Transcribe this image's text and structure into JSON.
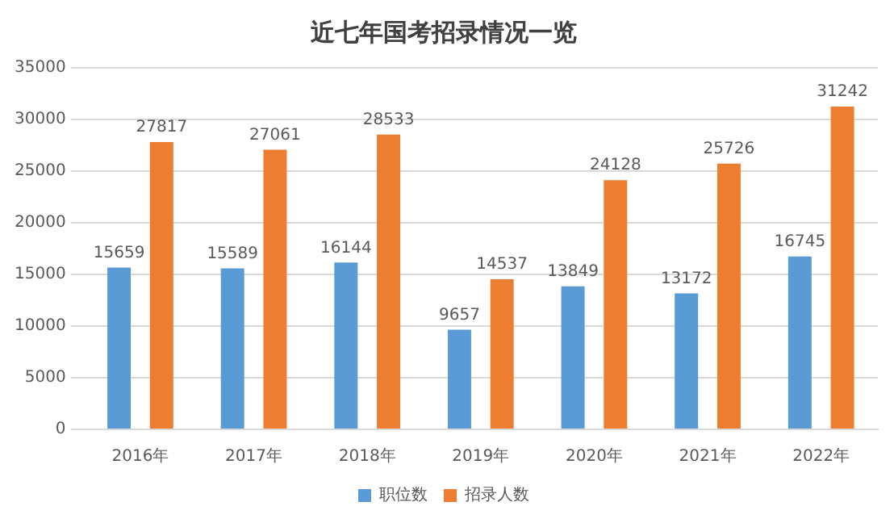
{
  "chart_data": {
    "type": "bar",
    "title": "近七年国考招录情况一览",
    "categories": [
      "2016年",
      "2017年",
      "2018年",
      "2019年",
      "2020年",
      "2021年",
      "2022年"
    ],
    "series": [
      {
        "name": "职位数",
        "color": "#5b9bd5",
        "values": [
          15659,
          15589,
          16144,
          9657,
          13849,
          13172,
          16745
        ]
      },
      {
        "name": "招录人数",
        "color": "#ed7d31",
        "values": [
          27817,
          27061,
          28533,
          14537,
          24128,
          25726,
          31242
        ]
      }
    ],
    "ylim": [
      0,
      35000
    ],
    "yticks": [
      0,
      5000,
      10000,
      15000,
      20000,
      25000,
      30000,
      35000
    ],
    "grid": "y",
    "legend": "bottom",
    "data_labels": true
  }
}
